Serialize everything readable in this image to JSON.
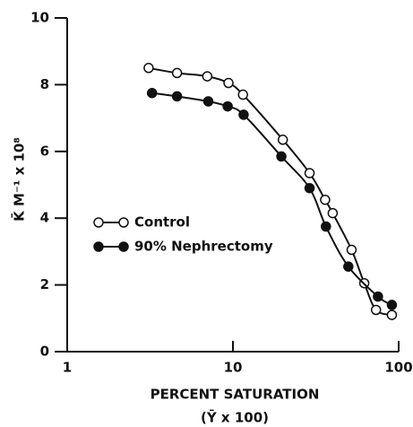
{
  "chart_data": {
    "type": "scatter",
    "xlabel": [
      "PERCENT SATURATION",
      "(Ȳ x 100)"
    ],
    "ylabel": "K̄ M⁻¹ x 10⁸",
    "xscale": "log",
    "xlim": [
      1,
      100
    ],
    "xticks": [
      1,
      10,
      100
    ],
    "ylim": [
      0,
      10
    ],
    "yticks": [
      0,
      2,
      4,
      6,
      8,
      10
    ],
    "legend": "center left",
    "smooth_line": true,
    "series": [
      {
        "name": "Control",
        "color": "#111",
        "fill": "#fff",
        "x": [
          3.1,
          4.6,
          7.0,
          9.4,
          11.5,
          20,
          29,
          36,
          40,
          52,
          62,
          73,
          91
        ],
        "values": [
          8.5,
          8.35,
          8.25,
          8.05,
          7.7,
          6.35,
          5.35,
          4.55,
          4.15,
          3.05,
          2.05,
          1.25,
          1.1
        ]
      },
      {
        "name": "90% Nephrectomy",
        "color": "#111",
        "fill": "#111",
        "x": [
          3.25,
          4.6,
          7.1,
          9.3,
          11.6,
          19.6,
          29,
          36.4,
          49.7,
          75,
          91
        ],
        "values": [
          7.75,
          7.65,
          7.5,
          7.35,
          7.1,
          5.85,
          4.9,
          3.75,
          2.55,
          1.65,
          1.4
        ]
      }
    ]
  }
}
